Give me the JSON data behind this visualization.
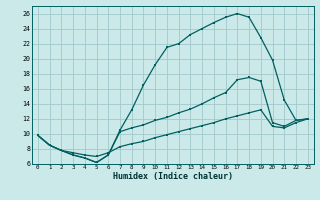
{
  "xlabel": "Humidex (Indice chaleur)",
  "xlim": [
    -0.5,
    23.5
  ],
  "ylim": [
    6,
    27
  ],
  "xticks": [
    0,
    1,
    2,
    3,
    4,
    5,
    6,
    7,
    8,
    9,
    10,
    11,
    12,
    13,
    14,
    15,
    16,
    17,
    18,
    19,
    20,
    21,
    22,
    23
  ],
  "yticks": [
    6,
    8,
    10,
    12,
    14,
    16,
    18,
    20,
    22,
    24,
    26
  ],
  "background_color": "#cce9ea",
  "grid_color": "#a0c8cc",
  "line_color": "#006060",
  "line1_x": [
    0,
    1,
    2,
    3,
    4,
    5,
    6,
    7,
    8,
    9,
    10,
    11,
    12,
    13,
    14,
    15,
    16,
    17,
    18,
    19,
    20,
    21,
    22,
    23
  ],
  "line1_y": [
    9.8,
    8.5,
    7.8,
    7.2,
    6.8,
    6.2,
    7.2,
    10.5,
    13.2,
    16.5,
    19.2,
    21.5,
    22.0,
    23.2,
    24.0,
    24.8,
    25.5,
    26.0,
    25.5,
    22.8,
    19.8,
    14.5,
    11.8,
    12.0
  ],
  "line2_x": [
    0,
    1,
    2,
    3,
    4,
    5,
    6,
    7,
    8,
    9,
    10,
    11,
    12,
    13,
    14,
    15,
    16,
    17,
    18,
    19,
    20,
    21,
    22,
    23
  ],
  "line2_y": [
    9.8,
    8.5,
    7.8,
    7.2,
    6.8,
    6.2,
    7.2,
    10.3,
    10.8,
    11.2,
    11.8,
    12.2,
    12.8,
    13.3,
    14.0,
    14.8,
    15.5,
    17.2,
    17.5,
    17.0,
    11.5,
    11.0,
    11.8,
    12.0
  ],
  "line3_x": [
    0,
    1,
    2,
    3,
    4,
    5,
    6,
    7,
    8,
    9,
    10,
    11,
    12,
    13,
    14,
    15,
    16,
    17,
    18,
    19,
    20,
    21,
    22,
    23
  ],
  "line3_y": [
    9.8,
    8.5,
    7.8,
    7.5,
    7.2,
    7.0,
    7.5,
    8.3,
    8.7,
    9.0,
    9.5,
    9.9,
    10.3,
    10.7,
    11.1,
    11.5,
    12.0,
    12.4,
    12.8,
    13.2,
    11.0,
    10.8,
    11.5,
    12.0
  ]
}
